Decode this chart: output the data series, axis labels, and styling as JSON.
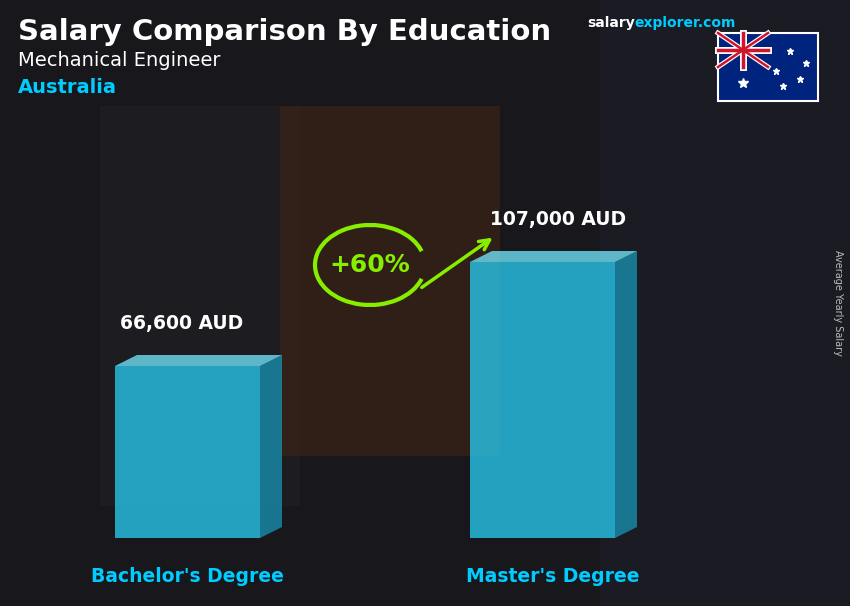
{
  "title": "Salary Comparison By Education",
  "subtitle": "Mechanical Engineer",
  "country": "Australia",
  "categories": [
    "Bachelor's Degree",
    "Master's Degree"
  ],
  "values": [
    66600,
    107000
  ],
  "value_labels": [
    "66,600 AUD",
    "107,000 AUD"
  ],
  "bar_front": "#29c9ef",
  "bar_top": "#72e4f8",
  "bar_side": "#1890b0",
  "bar_alpha": 0.78,
  "pct_change": "+60%",
  "pct_color": "#88ee00",
  "title_color": "#ffffff",
  "subtitle_color": "#ffffff",
  "country_color": "#00ccff",
  "xlabel_color": "#00ccff",
  "site_salary_color": "#ffffff",
  "site_explorer_color": "#00ccff",
  "ylabel_text": "Average Yearly Salary",
  "ylabel_color": "#bbbbbb",
  "bg_color": "#2c2c2c"
}
